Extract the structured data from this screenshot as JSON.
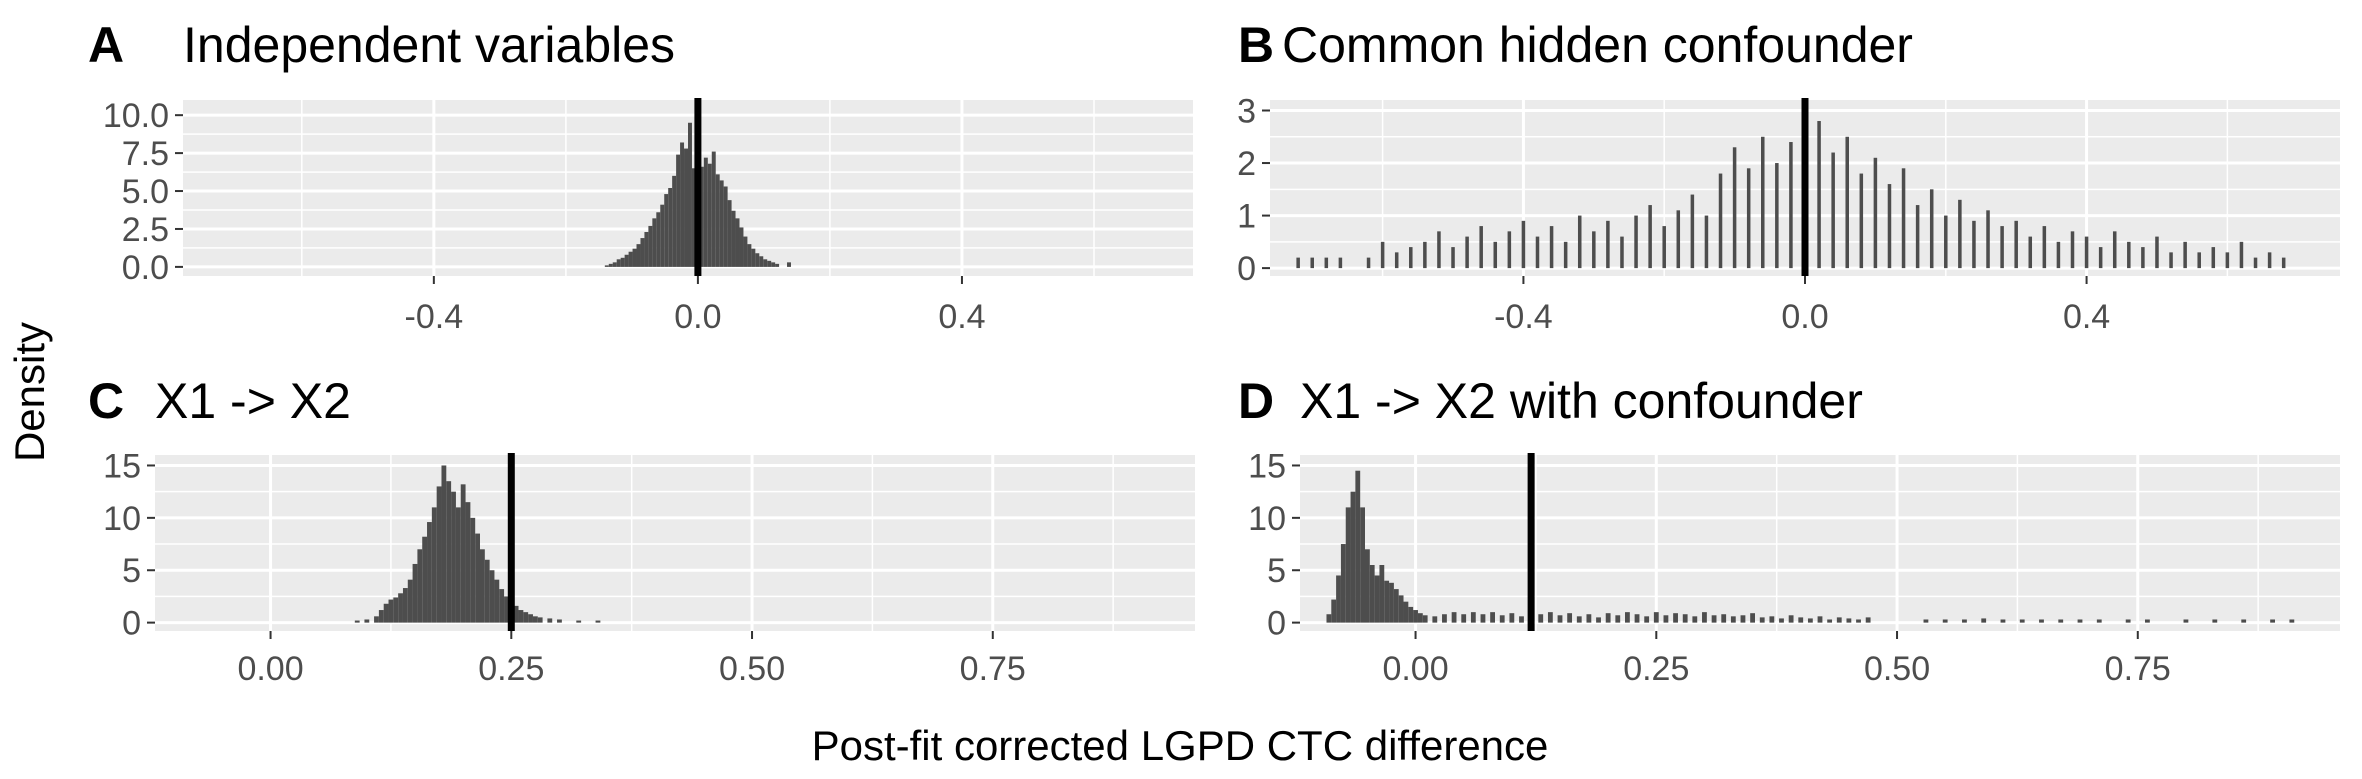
{
  "figure": {
    "ylabel": "Density",
    "xlabel": "Post-fit corrected LGPD CTC difference"
  },
  "colors": {
    "panel_bg": "#ebebeb",
    "grid": "#ffffff",
    "bars": "#4d4d4d",
    "vline": "#000000",
    "tick_text": "#4d4d4d"
  },
  "chart_data": [
    {
      "id": "A",
      "tag": "A",
      "title": "Independent variables",
      "type": "histogram",
      "xlim": [
        -0.78,
        0.75
      ],
      "ylim": [
        -0.6,
        11.0
      ],
      "xticks": [
        -0.4,
        0.0,
        0.4
      ],
      "xtick_labels": [
        "-0.4",
        "0.0",
        "0.4"
      ],
      "yticks": [
        0,
        2.5,
        5,
        7.5,
        10
      ],
      "ytick_labels": [
        "0.0",
        "2.5",
        "5.0",
        "7.5",
        "10.0"
      ],
      "vline": 0.0,
      "bin_width": 0.006,
      "bins": [
        [
          -0.138,
          0.1
        ],
        [
          -0.132,
          0.2
        ],
        [
          -0.126,
          0.3
        ],
        [
          -0.12,
          0.5
        ],
        [
          -0.114,
          0.6
        ],
        [
          -0.108,
          0.8
        ],
        [
          -0.102,
          1.0
        ],
        [
          -0.096,
          1.2
        ],
        [
          -0.09,
          1.5
        ],
        [
          -0.084,
          1.9
        ],
        [
          -0.078,
          2.3
        ],
        [
          -0.072,
          2.7
        ],
        [
          -0.066,
          3.2
        ],
        [
          -0.06,
          3.6
        ],
        [
          -0.054,
          4.1
        ],
        [
          -0.048,
          4.8
        ],
        [
          -0.042,
          5.2
        ],
        [
          -0.036,
          6.0
        ],
        [
          -0.03,
          7.4
        ],
        [
          -0.024,
          8.2
        ],
        [
          -0.018,
          7.8
        ],
        [
          -0.012,
          9.5
        ],
        [
          -0.006,
          6.5
        ],
        [
          0.0,
          8.4
        ],
        [
          0.006,
          6.6
        ],
        [
          0.012,
          7.2
        ],
        [
          0.018,
          6.8
        ],
        [
          0.024,
          7.6
        ],
        [
          0.03,
          6.1
        ],
        [
          0.036,
          5.7
        ],
        [
          0.042,
          5.3
        ],
        [
          0.048,
          4.4
        ],
        [
          0.054,
          3.7
        ],
        [
          0.06,
          3.2
        ],
        [
          0.066,
          2.6
        ],
        [
          0.072,
          2.0
        ],
        [
          0.078,
          1.5
        ],
        [
          0.084,
          1.2
        ],
        [
          0.09,
          0.9
        ],
        [
          0.096,
          0.7
        ],
        [
          0.102,
          0.5
        ],
        [
          0.108,
          0.4
        ],
        [
          0.114,
          0.3
        ],
        [
          0.12,
          0.2
        ],
        [
          0.138,
          0.3
        ]
      ]
    },
    {
      "id": "B",
      "tag": "B",
      "title": "Common hidden confounder",
      "type": "histogram",
      "xlim": [
        -0.76,
        0.76
      ],
      "ylim": [
        -0.15,
        3.2
      ],
      "xticks": [
        -0.4,
        0.0,
        0.4
      ],
      "xtick_labels": [
        "-0.4",
        "0.0",
        "0.4"
      ],
      "yticks": [
        0,
        1,
        2,
        3
      ],
      "ytick_labels": [
        "0",
        "1",
        "2",
        "3"
      ],
      "vline": 0.0,
      "bin_width": 0.005,
      "bins": [
        [
          -0.72,
          0.2
        ],
        [
          -0.7,
          0.2
        ],
        [
          -0.68,
          0.2
        ],
        [
          -0.66,
          0.2
        ],
        [
          -0.62,
          0.2
        ],
        [
          -0.6,
          0.5
        ],
        [
          -0.58,
          0.3
        ],
        [
          -0.56,
          0.4
        ],
        [
          -0.54,
          0.5
        ],
        [
          -0.52,
          0.7
        ],
        [
          -0.5,
          0.4
        ],
        [
          -0.48,
          0.6
        ],
        [
          -0.46,
          0.8
        ],
        [
          -0.44,
          0.5
        ],
        [
          -0.42,
          0.7
        ],
        [
          -0.4,
          0.9
        ],
        [
          -0.38,
          0.6
        ],
        [
          -0.36,
          0.8
        ],
        [
          -0.34,
          0.5
        ],
        [
          -0.32,
          1.0
        ],
        [
          -0.3,
          0.7
        ],
        [
          -0.28,
          0.9
        ],
        [
          -0.26,
          0.6
        ],
        [
          -0.24,
          1.0
        ],
        [
          -0.22,
          1.2
        ],
        [
          -0.2,
          0.8
        ],
        [
          -0.18,
          1.1
        ],
        [
          -0.16,
          1.4
        ],
        [
          -0.14,
          1.0
        ],
        [
          -0.12,
          1.8
        ],
        [
          -0.1,
          2.3
        ],
        [
          -0.08,
          1.9
        ],
        [
          -0.06,
          2.5
        ],
        [
          -0.04,
          2.0
        ],
        [
          -0.02,
          2.4
        ],
        [
          0.0,
          1.7
        ],
        [
          0.02,
          2.8
        ],
        [
          0.04,
          2.2
        ],
        [
          0.06,
          2.5
        ],
        [
          0.08,
          1.8
        ],
        [
          0.1,
          2.1
        ],
        [
          0.12,
          1.6
        ],
        [
          0.14,
          1.9
        ],
        [
          0.16,
          1.2
        ],
        [
          0.18,
          1.5
        ],
        [
          0.2,
          1.0
        ],
        [
          0.22,
          1.3
        ],
        [
          0.24,
          0.9
        ],
        [
          0.26,
          1.1
        ],
        [
          0.28,
          0.8
        ],
        [
          0.3,
          0.9
        ],
        [
          0.32,
          0.6
        ],
        [
          0.34,
          0.8
        ],
        [
          0.36,
          0.5
        ],
        [
          0.38,
          0.7
        ],
        [
          0.4,
          0.6
        ],
        [
          0.42,
          0.4
        ],
        [
          0.44,
          0.7
        ],
        [
          0.46,
          0.5
        ],
        [
          0.48,
          0.4
        ],
        [
          0.5,
          0.6
        ],
        [
          0.52,
          0.3
        ],
        [
          0.54,
          0.5
        ],
        [
          0.56,
          0.3
        ],
        [
          0.58,
          0.4
        ],
        [
          0.6,
          0.3
        ],
        [
          0.62,
          0.5
        ],
        [
          0.64,
          0.2
        ],
        [
          0.66,
          0.3
        ],
        [
          0.68,
          0.2
        ]
      ]
    },
    {
      "id": "C",
      "tag": "C",
      "title": "X1 -> X2",
      "type": "histogram",
      "xlim": [
        -0.12,
        0.96
      ],
      "ylim": [
        -0.8,
        16.0
      ],
      "xticks": [
        0.0,
        0.25,
        0.5,
        0.75
      ],
      "xtick_labels": [
        "0.00",
        "0.25",
        "0.50",
        "0.75"
      ],
      "yticks": [
        0,
        5,
        10,
        15
      ],
      "ytick_labels": [
        "0",
        "5",
        "10",
        "15"
      ],
      "vline": 0.25,
      "bin_width": 0.005,
      "bins": [
        [
          0.09,
          0.2
        ],
        [
          0.1,
          0.3
        ],
        [
          0.11,
          0.6
        ],
        [
          0.115,
          1.2
        ],
        [
          0.12,
          1.8
        ],
        [
          0.125,
          2.2
        ],
        [
          0.13,
          2.4
        ],
        [
          0.135,
          2.8
        ],
        [
          0.14,
          3.3
        ],
        [
          0.145,
          4.1
        ],
        [
          0.15,
          5.6
        ],
        [
          0.155,
          7.0
        ],
        [
          0.16,
          8.2
        ],
        [
          0.165,
          9.6
        ],
        [
          0.17,
          11.0
        ],
        [
          0.175,
          13.0
        ],
        [
          0.18,
          15.0
        ],
        [
          0.185,
          13.5
        ],
        [
          0.19,
          12.5
        ],
        [
          0.195,
          11.0
        ],
        [
          0.2,
          13.2
        ],
        [
          0.205,
          11.5
        ],
        [
          0.21,
          10.0
        ],
        [
          0.215,
          8.5
        ],
        [
          0.22,
          7.0
        ],
        [
          0.225,
          6.0
        ],
        [
          0.23,
          5.0
        ],
        [
          0.235,
          4.1
        ],
        [
          0.24,
          3.2
        ],
        [
          0.245,
          2.5
        ],
        [
          0.25,
          2.0
        ],
        [
          0.255,
          1.6
        ],
        [
          0.26,
          1.2
        ],
        [
          0.265,
          1.0
        ],
        [
          0.27,
          0.8
        ],
        [
          0.275,
          0.6
        ],
        [
          0.28,
          0.5
        ],
        [
          0.29,
          0.4
        ],
        [
          0.3,
          0.3
        ],
        [
          0.32,
          0.2
        ],
        [
          0.34,
          0.2
        ]
      ]
    },
    {
      "id": "D",
      "tag": "D",
      "title": "X1 -> X2 with confounder",
      "type": "histogram",
      "xlim": [
        -0.12,
        0.96
      ],
      "ylim": [
        -0.8,
        16.0
      ],
      "xticks": [
        0.0,
        0.25,
        0.5,
        0.75
      ],
      "xtick_labels": [
        "0.00",
        "0.25",
        "0.50",
        "0.75"
      ],
      "yticks": [
        0,
        5,
        10,
        15
      ],
      "ytick_labels": [
        "0",
        "5",
        "10",
        "15"
      ],
      "vline": 0.12,
      "bin_width": 0.005,
      "bins": [
        [
          -0.09,
          0.8
        ],
        [
          -0.085,
          2.2
        ],
        [
          -0.08,
          4.5
        ],
        [
          -0.075,
          7.5
        ],
        [
          -0.07,
          11.0
        ],
        [
          -0.065,
          12.5
        ],
        [
          -0.06,
          14.5
        ],
        [
          -0.055,
          11.0
        ],
        [
          -0.05,
          7.0
        ],
        [
          -0.045,
          5.5
        ],
        [
          -0.04,
          4.5
        ],
        [
          -0.035,
          5.5
        ],
        [
          -0.03,
          4.0
        ],
        [
          -0.025,
          3.8
        ],
        [
          -0.02,
          3.2
        ],
        [
          -0.015,
          2.6
        ],
        [
          -0.01,
          2.0
        ],
        [
          -0.005,
          1.5
        ],
        [
          0.0,
          1.2
        ],
        [
          0.005,
          0.9
        ],
        [
          0.01,
          0.7
        ],
        [
          0.02,
          0.6
        ],
        [
          0.03,
          0.8
        ],
        [
          0.04,
          1.0
        ],
        [
          0.05,
          0.8
        ],
        [
          0.06,
          1.0
        ],
        [
          0.07,
          0.8
        ],
        [
          0.08,
          1.0
        ],
        [
          0.09,
          0.7
        ],
        [
          0.1,
          0.9
        ],
        [
          0.11,
          0.6
        ],
        [
          0.13,
          0.8
        ],
        [
          0.14,
          1.0
        ],
        [
          0.15,
          0.7
        ],
        [
          0.16,
          0.9
        ],
        [
          0.17,
          0.6
        ],
        [
          0.18,
          0.8
        ],
        [
          0.19,
          0.5
        ],
        [
          0.2,
          0.9
        ],
        [
          0.21,
          0.7
        ],
        [
          0.22,
          1.0
        ],
        [
          0.23,
          0.8
        ],
        [
          0.24,
          0.6
        ],
        [
          0.25,
          1.0
        ],
        [
          0.26,
          0.7
        ],
        [
          0.27,
          0.9
        ],
        [
          0.28,
          0.8
        ],
        [
          0.29,
          0.6
        ],
        [
          0.3,
          1.0
        ],
        [
          0.31,
          0.7
        ],
        [
          0.32,
          0.8
        ],
        [
          0.33,
          0.6
        ],
        [
          0.34,
          0.7
        ],
        [
          0.35,
          0.9
        ],
        [
          0.36,
          0.5
        ],
        [
          0.37,
          0.6
        ],
        [
          0.38,
          0.4
        ],
        [
          0.39,
          0.7
        ],
        [
          0.4,
          0.5
        ],
        [
          0.41,
          0.4
        ],
        [
          0.42,
          0.6
        ],
        [
          0.43,
          0.3
        ],
        [
          0.44,
          0.5
        ],
        [
          0.45,
          0.4
        ],
        [
          0.46,
          0.3
        ],
        [
          0.47,
          0.5
        ],
        [
          0.53,
          0.3
        ],
        [
          0.55,
          0.3
        ],
        [
          0.57,
          0.3
        ],
        [
          0.59,
          0.4
        ],
        [
          0.61,
          0.3
        ],
        [
          0.63,
          0.3
        ],
        [
          0.65,
          0.3
        ],
        [
          0.67,
          0.3
        ],
        [
          0.69,
          0.3
        ],
        [
          0.71,
          0.3
        ],
        [
          0.74,
          0.3
        ],
        [
          0.76,
          0.3
        ],
        [
          0.8,
          0.3
        ],
        [
          0.83,
          0.3
        ],
        [
          0.86,
          0.3
        ],
        [
          0.89,
          0.3
        ],
        [
          0.91,
          0.3
        ]
      ]
    }
  ]
}
